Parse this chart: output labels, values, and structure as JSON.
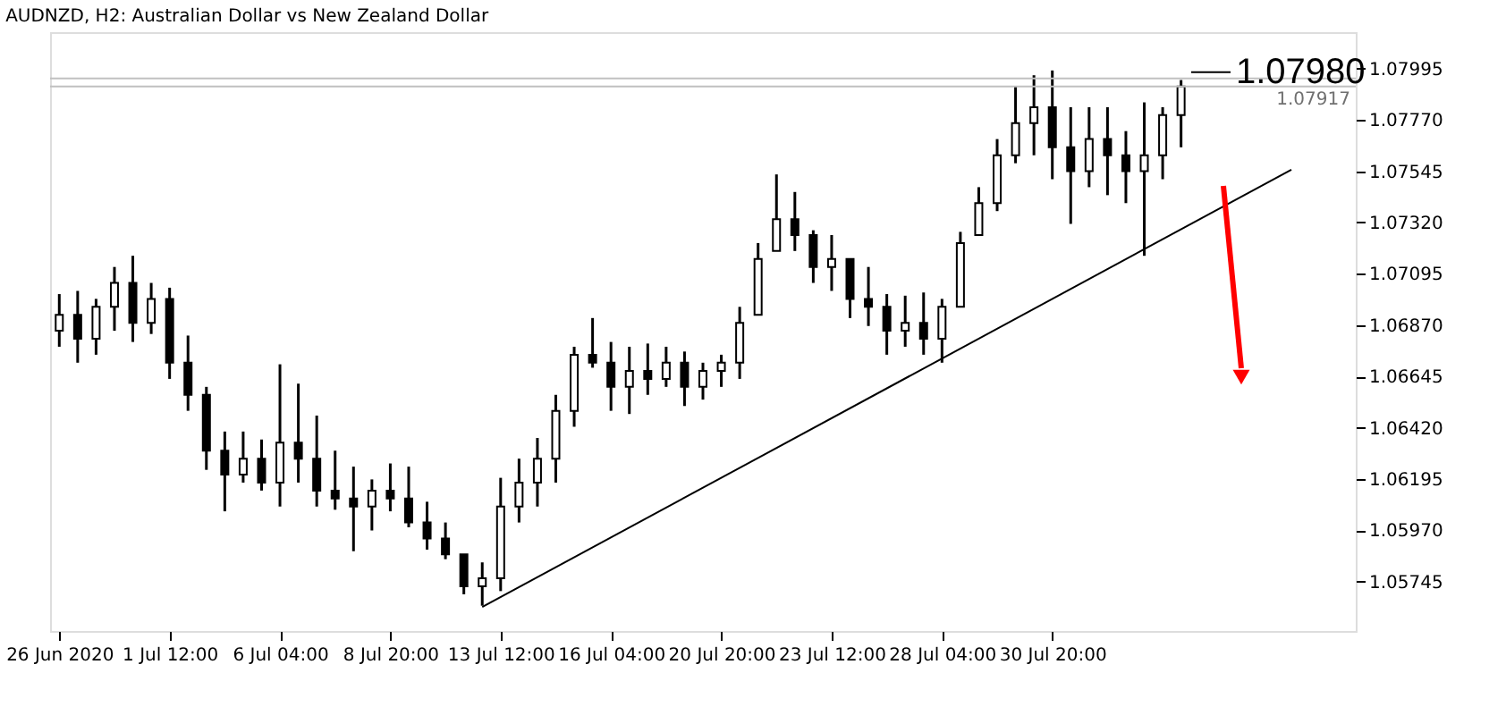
{
  "chart_data": {
    "type": "candlestick",
    "title": "AUDNZD, H2:  Australian Dollar vs New Zealand Dollar",
    "categories": [
      "26 Jun 2020",
      null,
      null,
      null,
      null,
      null,
      "1 Jul 12:00",
      null,
      null,
      null,
      null,
      null,
      "6 Jul 04:00",
      null,
      null,
      null,
      null,
      null,
      "8 Jul 20:00",
      null,
      null,
      null,
      null,
      null,
      "13 Jul 12:00",
      null,
      null,
      null,
      null,
      null,
      "16 Jul 04:00",
      null,
      null,
      null,
      null,
      null,
      "20 Jul 20:00",
      null,
      null,
      null,
      null,
      null,
      "23 Jul 12:00",
      null,
      null,
      null,
      null,
      null,
      "28 Jul 04:00",
      null,
      null,
      null,
      null,
      null,
      "30 Jul 20:00",
      null,
      null,
      null,
      null,
      null,
      null,
      null,
      null,
      null,
      null,
      null,
      null,
      null,
      null,
      null,
      null
    ],
    "ohlc": [
      [
        1.06845,
        1.07006,
        1.06775,
        1.06915
      ],
      [
        1.06915,
        1.0702,
        1.06705,
        1.0681
      ],
      [
        1.0681,
        1.06985,
        1.0674,
        1.0695
      ],
      [
        1.0695,
        1.07125,
        1.06845,
        1.07055
      ],
      [
        1.07055,
        1.07174,
        1.06796,
        1.0688
      ],
      [
        1.0688,
        1.07055,
        1.06831,
        1.06985
      ],
      [
        1.06985,
        1.07034,
        1.06634,
        1.06705
      ],
      [
        1.06705,
        1.06824,
        1.06494,
        1.06564
      ],
      [
        1.06564,
        1.06599,
        1.06235,
        1.06319
      ],
      [
        1.06319,
        1.06403,
        1.06053,
        1.06214
      ],
      [
        1.06214,
        1.06403,
        1.06179,
        1.06284
      ],
      [
        1.06284,
        1.06368,
        1.06144,
        1.06179
      ],
      [
        1.06179,
        1.06698,
        1.06074,
        1.06354
      ],
      [
        1.06354,
        1.06613,
        1.06179,
        1.06284
      ],
      [
        1.06284,
        1.06473,
        1.06074,
        1.06144
      ],
      [
        1.06144,
        1.06319,
        1.0606,
        1.06109
      ],
      [
        1.06109,
        1.06249,
        1.05878,
        1.06074
      ],
      [
        1.06074,
        1.06193,
        1.05969,
        1.06144
      ],
      [
        1.06144,
        1.06263,
        1.06053,
        1.06109
      ],
      [
        1.06109,
        1.06249,
        1.05983,
        1.06004
      ],
      [
        1.06004,
        1.06095,
        1.05885,
        1.05934
      ],
      [
        1.05934,
        1.06004,
        1.05843,
        1.05864
      ],
      [
        1.05864,
        1.05864,
        1.05689,
        1.05724
      ],
      [
        1.05724,
        1.05829,
        1.05639,
        1.05759
      ],
      [
        1.05759,
        1.062,
        1.05703,
        1.06074
      ],
      [
        1.06074,
        1.06284,
        1.06004,
        1.06179
      ],
      [
        1.06179,
        1.06375,
        1.06074,
        1.06284
      ],
      [
        1.06284,
        1.06564,
        1.06179,
        1.06494
      ],
      [
        1.06494,
        1.06775,
        1.06424,
        1.0674
      ],
      [
        1.0674,
        1.06901,
        1.06683,
        1.06705
      ],
      [
        1.06705,
        1.06796,
        1.06494,
        1.06599
      ],
      [
        1.06599,
        1.06775,
        1.0648,
        1.06669
      ],
      [
        1.06669,
        1.06789,
        1.06564,
        1.06634
      ],
      [
        1.06634,
        1.06775,
        1.06599,
        1.06705
      ],
      [
        1.06705,
        1.06754,
        1.06515,
        1.06599
      ],
      [
        1.06599,
        1.06705,
        1.06543,
        1.06669
      ],
      [
        1.06669,
        1.0674,
        1.06599,
        1.06705
      ],
      [
        1.06705,
        1.0695,
        1.06634,
        1.0688
      ],
      [
        1.06915,
        1.0723,
        1.06915,
        1.0716
      ],
      [
        1.07195,
        1.07531,
        1.07195,
        1.07335
      ],
      [
        1.07335,
        1.07454,
        1.07195,
        1.07265
      ],
      [
        1.07265,
        1.07286,
        1.07055,
        1.07125
      ],
      [
        1.07125,
        1.07265,
        1.0702,
        1.0716
      ],
      [
        1.0716,
        1.0716,
        1.06901,
        1.06985
      ],
      [
        1.06985,
        1.07125,
        1.06866,
        1.0695
      ],
      [
        1.0695,
        1.07006,
        1.0674,
        1.06845
      ],
      [
        1.06845,
        1.06999,
        1.06775,
        1.0688
      ],
      [
        1.0688,
        1.07013,
        1.0674,
        1.0681
      ],
      [
        1.0681,
        1.06985,
        1.06705,
        1.0695
      ],
      [
        1.0695,
        1.07279,
        1.0695,
        1.0723
      ],
      [
        1.07265,
        1.07475,
        1.07265,
        1.07405
      ],
      [
        1.07405,
        1.07686,
        1.0737,
        1.07615
      ],
      [
        1.07615,
        1.07917,
        1.0758,
        1.07756
      ],
      [
        1.07756,
        1.07966,
        1.07615,
        1.07826
      ],
      [
        1.07826,
        1.07987,
        1.0751,
        1.0765
      ],
      [
        1.0765,
        1.07826,
        1.07314,
        1.07545
      ],
      [
        1.07545,
        1.07826,
        1.07475,
        1.07686
      ],
      [
        1.07686,
        1.07826,
        1.0744,
        1.07615
      ],
      [
        1.07615,
        1.07721,
        1.07405,
        1.07545
      ],
      [
        1.07545,
        1.07847,
        1.07174,
        1.07615
      ],
      [
        1.07615,
        1.07826,
        1.0751,
        1.07791
      ],
      [
        1.07791,
        1.07945,
        1.0765,
        1.07917
      ],
      null,
      null,
      null,
      null,
      null,
      null,
      null,
      null,
      null
    ],
    "color": "#000000",
    "series": [
      {
        "type": "line",
        "color": "#000000",
        "values": [
          null,
          null,
          null,
          null,
          null,
          null,
          null,
          null,
          null,
          null,
          null,
          null,
          null,
          null,
          null,
          null,
          null,
          null,
          null,
          null,
          null,
          null,
          null,
          1.05633,
          null,
          null,
          null,
          null,
          null,
          null,
          null,
          null,
          null,
          null,
          null,
          null,
          null,
          null,
          null,
          null,
          null,
          null,
          null,
          null,
          null,
          null,
          null,
          null,
          null,
          null,
          null,
          null,
          null,
          null,
          null,
          null,
          null,
          null,
          null,
          null,
          null,
          null,
          null,
          null,
          null,
          null,
          null,
          1.07552,
          null,
          null,
          null
        ]
      }
    ],
    "ylim": [
      1.05528,
      1.08155
    ],
    "yticks": [
      1.05745,
      {
        "value": 1.0597,
        "label": "1.05970"
      },
      1.06195,
      {
        "value": 1.0642,
        "label": "1.06420"
      },
      1.06645,
      {
        "value": 1.0687,
        "label": "1.06870"
      },
      1.07095,
      {
        "value": 1.0732,
        "label": "1.07320"
      },
      1.07545,
      {
        "value": 1.0777,
        "label": "1.07770"
      },
      1.07995
    ],
    "ref_lines": [
      {
        "axis": "y",
        "value": 1.07952,
        "color": "#c0c0c0"
      },
      {
        "axis": "y",
        "value": 1.07917,
        "label": "1.07917",
        "color": "#c0c0c0"
      }
    ],
    "annotations": [
      {
        "text": "1.07980",
        "y": 1.0798
      }
    ],
    "grid": false,
    "legend": false
  }
}
